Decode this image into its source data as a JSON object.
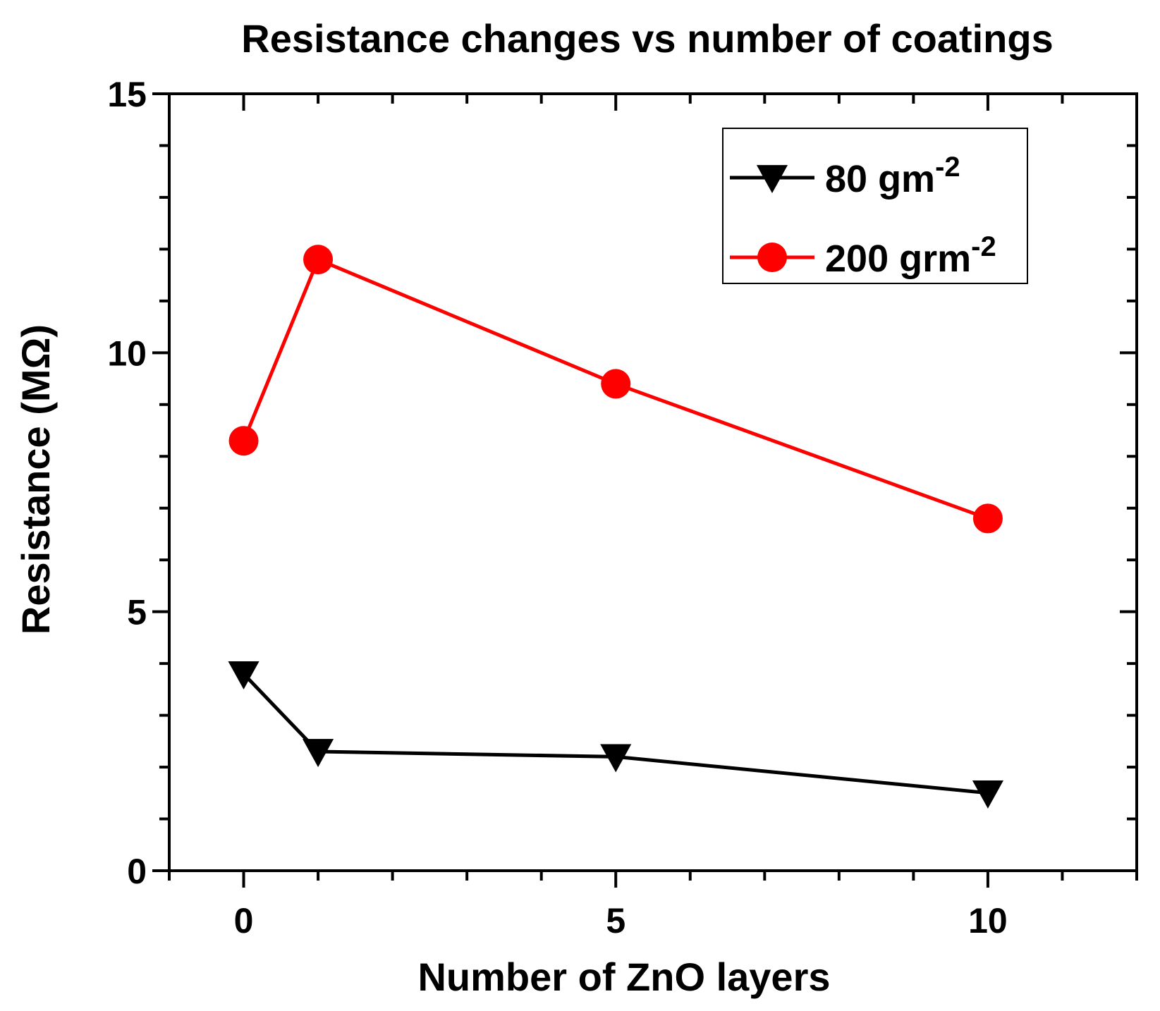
{
  "chart_data": {
    "type": "line",
    "title": "Resistance changes vs number of coatings",
    "xlabel": "Number of ZnO layers",
    "ylabel": "Resistance (MΩ)",
    "xlim": [
      -1,
      12
    ],
    "ylim": [
      0,
      15
    ],
    "x_ticks": [
      0,
      5,
      10
    ],
    "x_tick_labels": [
      "0",
      "5",
      "10"
    ],
    "x_minor_step": 1,
    "y_ticks": [
      0,
      5,
      10,
      15
    ],
    "y_tick_labels": [
      "0",
      "5",
      "10",
      "15"
    ],
    "y_minor_step": 1,
    "legend_position": "top-right",
    "series": [
      {
        "name": "80 gm-2",
        "legend_base": "80 gm",
        "legend_sup": "-2",
        "color": "#000000",
        "marker": "triangle-down",
        "x": [
          0,
          1,
          5,
          10
        ],
        "y": [
          3.8,
          2.3,
          2.2,
          1.5
        ]
      },
      {
        "name": "200 grm-2",
        "legend_base": "200 grm",
        "legend_sup": "-2",
        "color": "#ff0000",
        "marker": "circle",
        "x": [
          0,
          1,
          5,
          10
        ],
        "y": [
          8.3,
          11.8,
          9.4,
          6.8
        ]
      }
    ]
  }
}
